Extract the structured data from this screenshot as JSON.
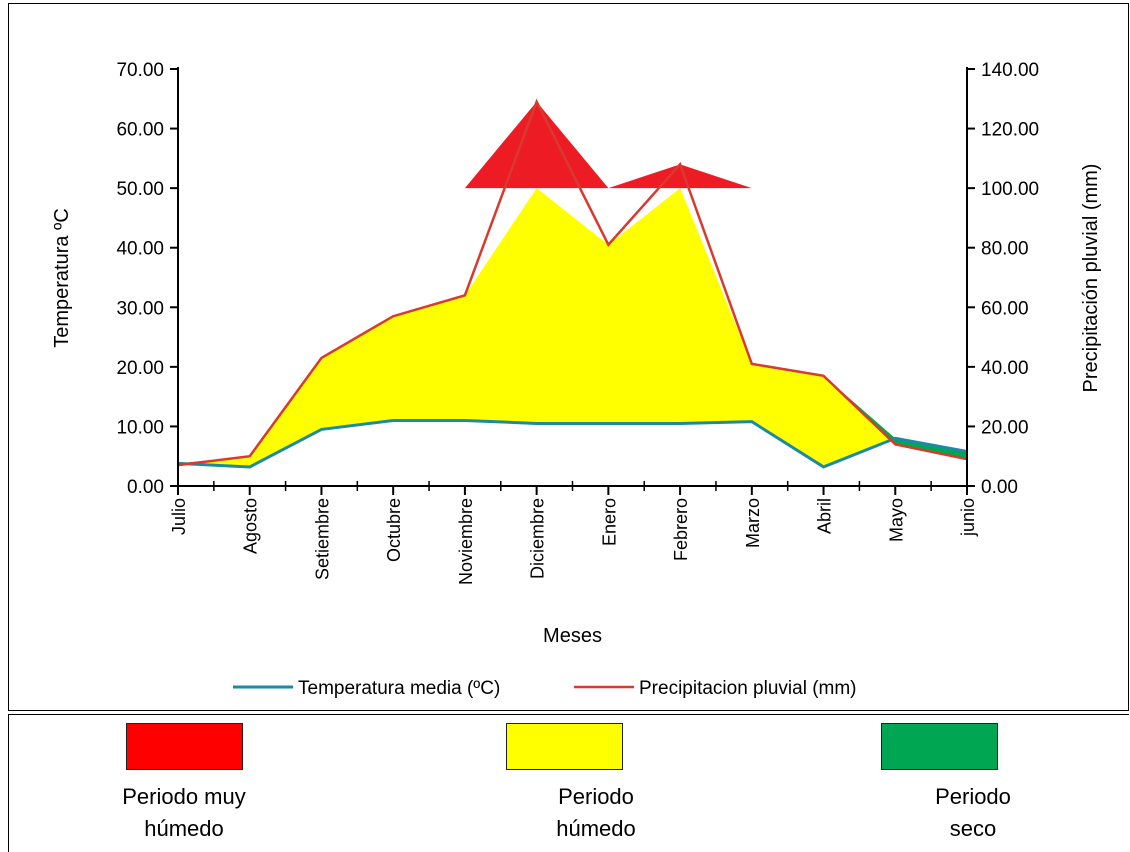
{
  "chart_data": {
    "type": "area",
    "title": "",
    "xlabel": "Meses",
    "ylabel_left": "Temperatura ºC",
    "ylabel_right": "Precipitación pluvial (mm)",
    "categories": [
      "Julio",
      "Agosto",
      "Setiembre",
      "Octubre",
      "Noviembre",
      "Diciembre",
      "Enero",
      "Febrero",
      "Marzo",
      "Abril",
      "Mayo",
      "junio"
    ],
    "y_left": {
      "min": 0,
      "max": 70,
      "ticks": [
        "0.00",
        "10.00",
        "20.00",
        "30.00",
        "40.00",
        "50.00",
        "60.00",
        "70.00"
      ]
    },
    "y_right": {
      "min": 0,
      "max": 140,
      "ticks": [
        "0.00",
        "20.00",
        "40.00",
        "60.00",
        "80.00",
        "100.00",
        "120.00",
        "140.00"
      ]
    },
    "series": [
      {
        "name": "Temperatura media (ºC)",
        "axis": "left",
        "color": "#1a8aa6",
        "values": [
          3.8,
          3.2,
          9.5,
          11.0,
          11.0,
          10.5,
          10.5,
          10.5,
          10.8,
          3.2,
          8.0,
          5.8
        ]
      },
      {
        "name": "Precipitacion pluvial (mm)",
        "axis": "right",
        "color": "#d83a2f",
        "values": [
          7,
          10,
          43,
          57,
          64,
          129,
          81,
          108,
          41,
          37,
          14,
          9
        ]
      }
    ],
    "wet_threshold_mm": 100,
    "legend_position": "bottom",
    "grid": false
  },
  "periods": [
    {
      "color": "#ff0000",
      "line1": "Periodo muy",
      "line2": "húmedo"
    },
    {
      "color": "#ffff00",
      "line1": "Periodo",
      "line2": "húmedo"
    },
    {
      "color": "#00a651",
      "line1": "Periodo",
      "line2": "seco"
    }
  ]
}
